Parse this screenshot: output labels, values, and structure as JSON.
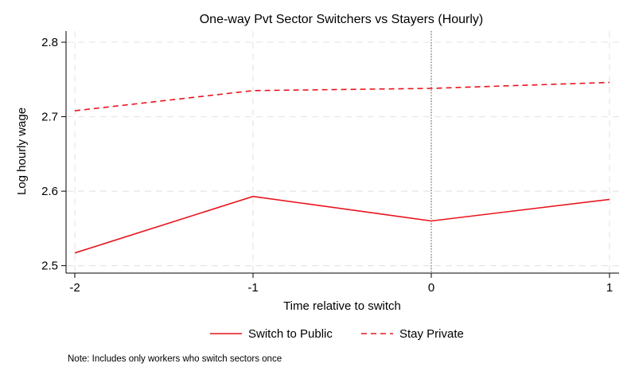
{
  "chart_data": {
    "type": "line",
    "title": "One-way Pvt Sector Switchers vs Stayers (Hourly)",
    "xlabel": "Time relative to switch",
    "ylabel": "Log hourly wage",
    "x": [
      -2,
      -1,
      0,
      1
    ],
    "xticks": [
      -2,
      -1,
      0,
      1
    ],
    "xtick_labels": [
      "-2",
      "-1",
      "0",
      "1"
    ],
    "yticks": [
      2.5,
      2.6,
      2.7,
      2.8
    ],
    "ytick_labels": [
      "2.5",
      "2.6",
      "2.7",
      "2.8"
    ],
    "xlim": [
      -2,
      1
    ],
    "ylim": [
      2.49,
      2.815
    ],
    "grid": true,
    "reference_line_x": 0,
    "series": [
      {
        "name": "Switch to Public",
        "values": [
          2.517,
          2.593,
          2.56,
          2.589
        ],
        "color": "#e8141e",
        "style": "solid"
      },
      {
        "name": "Stay Private",
        "values": [
          2.708,
          2.735,
          2.738,
          2.746
        ],
        "color": "#e8141e",
        "style": "dashed"
      }
    ],
    "legend_position": "bottom",
    "note": "Note: Includes only workers who switch sectors once"
  }
}
